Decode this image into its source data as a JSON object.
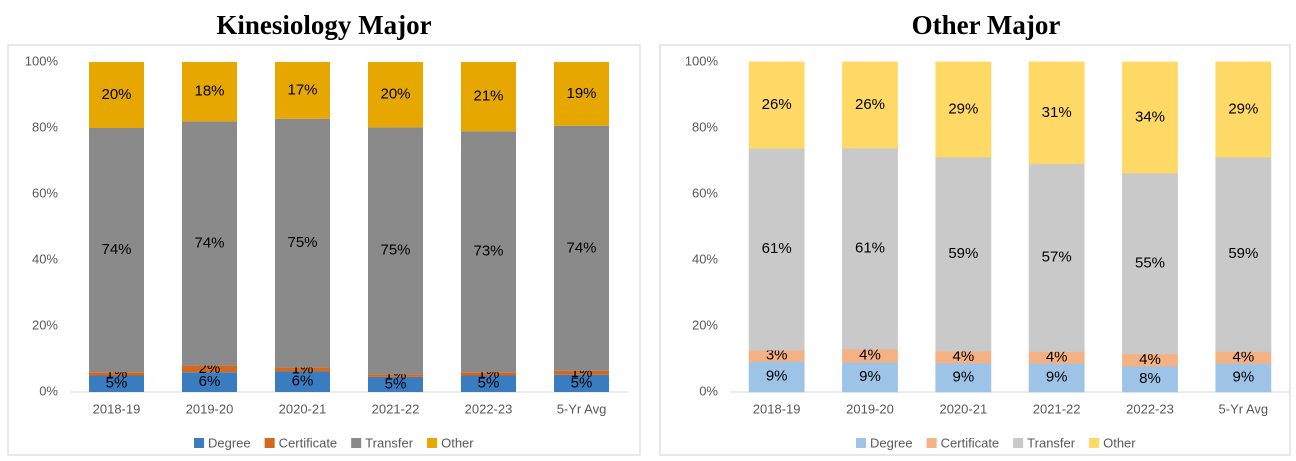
{
  "chart_data": [
    {
      "type": "stacked_bar",
      "title": "Kinesiology Major",
      "categories": [
        "2018-19",
        "2019-20",
        "2020-21",
        "2021-22",
        "2022-23",
        "5-Yr Avg"
      ],
      "ylim": [
        0,
        100
      ],
      "yticks": [
        {
          "value": 0,
          "label": "0%"
        },
        {
          "value": 20,
          "label": "20%"
        },
        {
          "value": 40,
          "label": "40%"
        },
        {
          "value": 60,
          "label": "60%"
        },
        {
          "value": 80,
          "label": "80%"
        },
        {
          "value": 100,
          "label": "100%"
        }
      ],
      "series": [
        {
          "name": "Degree",
          "color": "#3a7cc0",
          "values": [
            5,
            6,
            6.2,
            4.6,
            5,
            5.2
          ],
          "value_labels": [
            "5%",
            "6%",
            "6%",
            "5%",
            "5%",
            "5%"
          ]
        },
        {
          "name": "Certificate",
          "color": "#d2691e",
          "values": [
            1,
            2,
            1.2,
            0.8,
            1,
            1.2
          ],
          "value_labels": [
            "1%",
            "2%",
            "1%",
            "1%",
            "1%",
            "1%"
          ]
        },
        {
          "name": "Transfer",
          "color": "#8a8a8a",
          "values": [
            74,
            74,
            75.4,
            74.8,
            73,
            74.3
          ],
          "value_labels": [
            "74%",
            "74%",
            "75%",
            "75%",
            "73%",
            "74%"
          ]
        },
        {
          "name": "Other",
          "color": "#e6a800",
          "values": [
            20,
            18,
            17.2,
            19.8,
            21,
            19.3
          ],
          "value_labels": [
            "20%",
            "18%",
            "17%",
            "20%",
            "21%",
            "19%"
          ]
        }
      ]
    },
    {
      "type": "stacked_bar",
      "title": "Other Major",
      "categories": [
        "2018-19",
        "2019-20",
        "2020-21",
        "2021-22",
        "2022-23",
        "5-Yr Avg"
      ],
      "ylim": [
        0,
        100
      ],
      "yticks": [
        {
          "value": 0,
          "label": "0%"
        },
        {
          "value": 20,
          "label": "20%"
        },
        {
          "value": 40,
          "label": "40%"
        },
        {
          "value": 60,
          "label": "60%"
        },
        {
          "value": 80,
          "label": "80%"
        },
        {
          "value": 100,
          "label": "100%"
        }
      ],
      "series": [
        {
          "name": "Degree",
          "color": "#9dc3e6",
          "values": [
            9.3,
            9,
            8.8,
            8.7,
            7.9,
            8.7
          ],
          "value_labels": [
            "9%",
            "9%",
            "9%",
            "9%",
            "8%",
            "9%"
          ]
        },
        {
          "name": "Certificate",
          "color": "#f4b183",
          "values": [
            3.4,
            4,
            3.6,
            3.6,
            3.7,
            3.6
          ],
          "value_labels": [
            "3%",
            "4%",
            "4%",
            "4%",
            "4%",
            "4%"
          ]
        },
        {
          "name": "Transfer",
          "color": "#c9c9c9",
          "values": [
            61.2,
            61,
            58.8,
            56.9,
            54.8,
            58.9
          ],
          "value_labels": [
            "61%",
            "61%",
            "59%",
            "57%",
            "55%",
            "59%"
          ]
        },
        {
          "name": "Other",
          "color": "#ffd966",
          "values": [
            26.1,
            26,
            28.8,
            30.8,
            33.6,
            28.8
          ],
          "value_labels": [
            "26%",
            "26%",
            "29%",
            "31%",
            "34%",
            "29%"
          ]
        }
      ]
    }
  ]
}
